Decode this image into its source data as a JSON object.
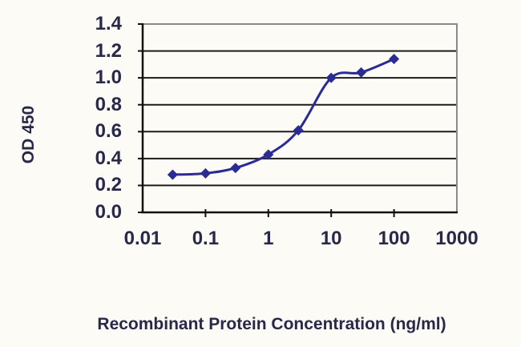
{
  "chart_data": {
    "type": "line",
    "title": "",
    "xlabel": "Recombinant Protein Concentration (ng/ml)",
    "ylabel": "OD 450",
    "x_scale": "log10",
    "series": [
      {
        "name": "OD 450",
        "x": [
          0.03,
          0.1,
          0.3,
          1,
          3,
          10,
          30,
          100
        ],
        "y": [
          0.28,
          0.29,
          0.33,
          0.43,
          0.61,
          1.0,
          1.04,
          1.14
        ]
      }
    ],
    "x_tick_labels": [
      "0.01",
      "0.1",
      "1",
      "10",
      "100",
      "1000"
    ],
    "x_tick_values": [
      0.01,
      0.1,
      1,
      10,
      100,
      1000
    ],
    "y_tick_labels": [
      "0.0",
      "0.2",
      "0.4",
      "0.6",
      "0.8",
      "1.0",
      "1.2",
      "1.4"
    ],
    "y_tick_values": [
      0,
      0.2,
      0.4,
      0.6,
      0.8,
      1.0,
      1.2,
      1.4
    ],
    "xlim": [
      0.01,
      1000
    ],
    "ylim": [
      0,
      1.4
    ],
    "grid": "horizontal",
    "legend": "none",
    "marker": "diamond",
    "line_style": "smoothed",
    "colors": {
      "series": "#2b2b94",
      "gridline": "#1c1c1c",
      "frame": "#8a8a8a",
      "axis": "#111111",
      "text": "#28284a",
      "background": "#fcfbf6"
    }
  }
}
